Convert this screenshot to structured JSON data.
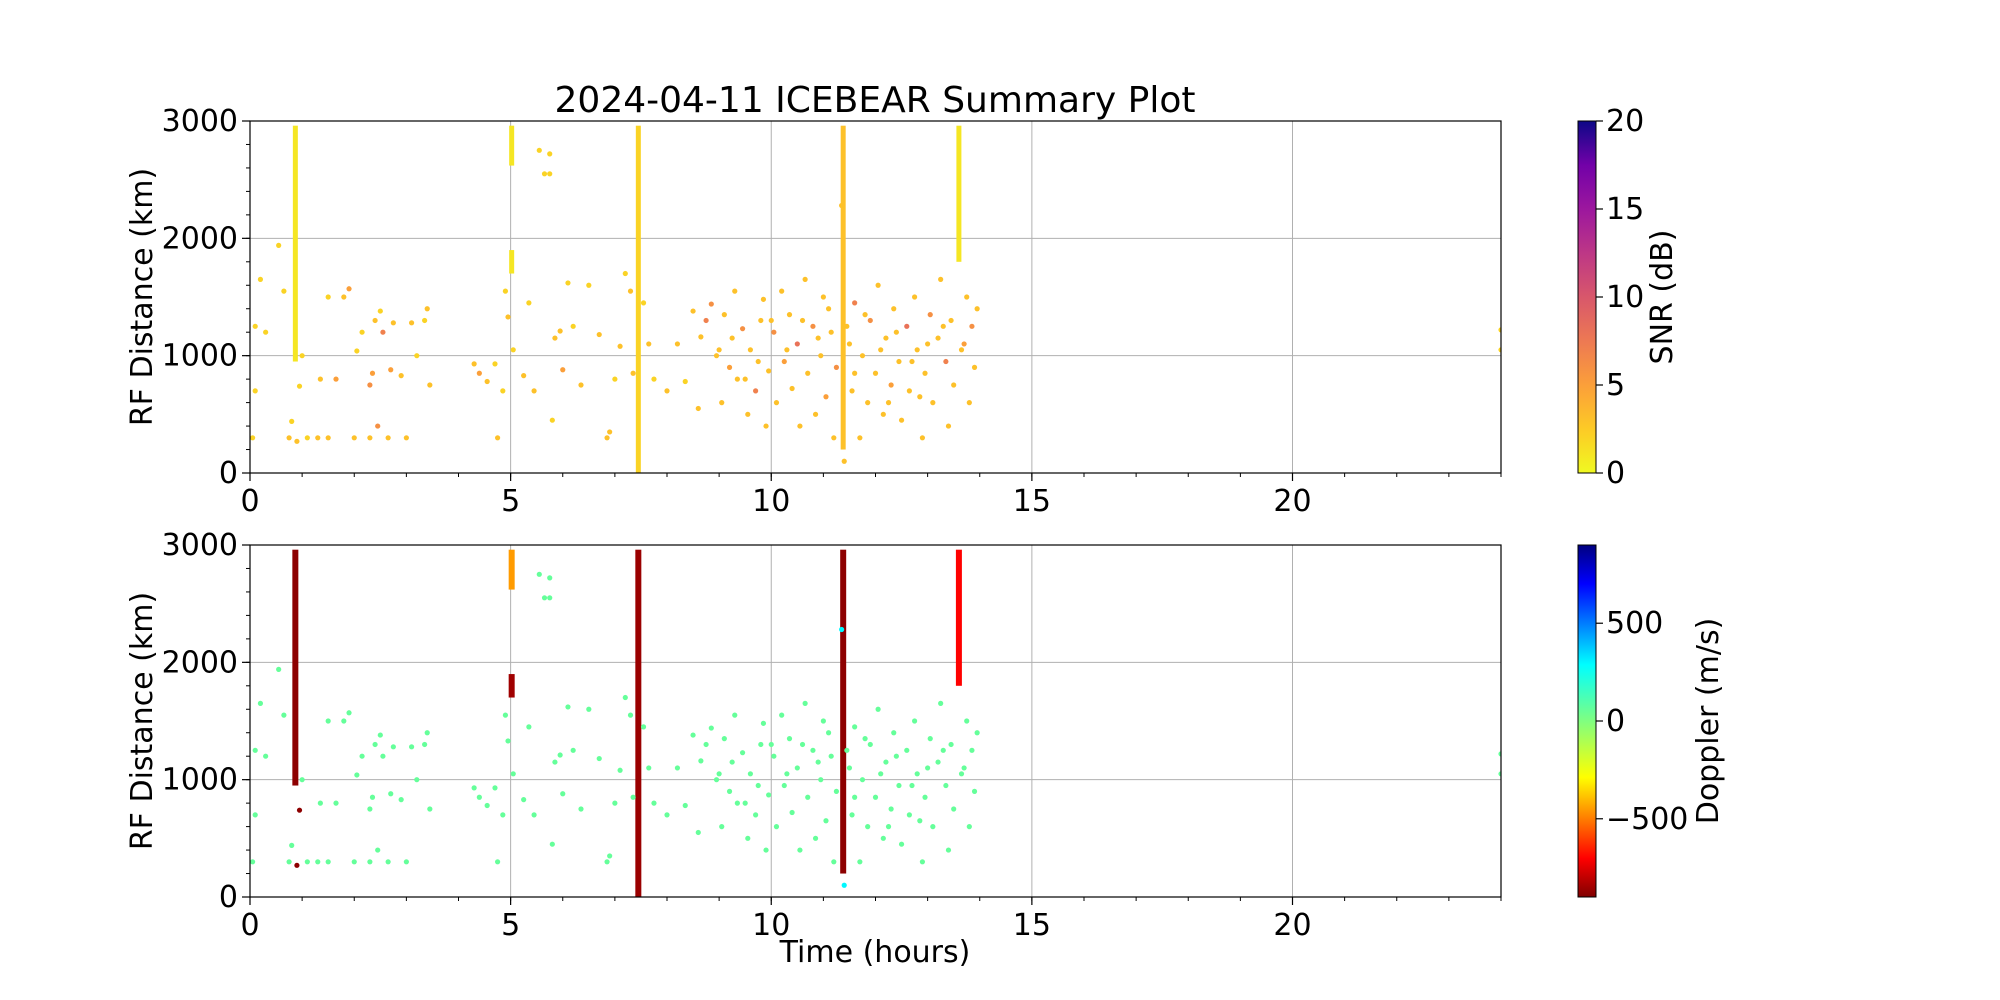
{
  "chart_data": {
    "title": "2024-04-11 ICEBEAR Summary Plot",
    "panels": [
      {
        "type": "scatter",
        "ylabel": "RF Distance (km)",
        "xlabel": "",
        "xlim": [
          0,
          24
        ],
        "ylim": [
          0,
          3000
        ],
        "xticks": [
          0,
          5,
          10,
          15,
          20
        ],
        "yticks": [
          0,
          1000,
          2000,
          3000
        ],
        "grid": true,
        "color_by": "snr",
        "colorbar": {
          "label": "SNR (dB)",
          "range": [
            0,
            20
          ],
          "ticks": [
            0,
            5,
            10,
            15,
            20
          ],
          "tick_labels": [
            "0",
            "5",
            "10",
            "15",
            "20"
          ],
          "colormap": "plasma_r"
        }
      },
      {
        "type": "scatter",
        "ylabel": "RF Distance (km)",
        "xlabel": "Time (hours)",
        "xlim": [
          0,
          24
        ],
        "ylim": [
          0,
          3000
        ],
        "xticks": [
          0,
          5,
          10,
          15,
          20
        ],
        "yticks": [
          0,
          1000,
          2000,
          3000
        ],
        "grid": true,
        "color_by": "doppler",
        "colorbar": {
          "label": "Doppler (m/s)",
          "range": [
            -900,
            900
          ],
          "ticks": [
            500,
            0,
            -500
          ],
          "tick_labels": [
            "500",
            "0",
            "−500"
          ],
          "colormap": "jet_r"
        }
      }
    ],
    "vertical_streaks": [
      {
        "x": 0.87,
        "y": [
          950,
          2960
        ],
        "snr": 1,
        "doppler": -880
      },
      {
        "x": 5.02,
        "y": [
          1700,
          1900
        ],
        "snr": 1,
        "doppler": -850
      },
      {
        "x": 5.02,
        "y": [
          2620,
          2960
        ],
        "snr": 1,
        "doppler": -450
      },
      {
        "x": 7.45,
        "y": [
          0,
          2960
        ],
        "snr": 2,
        "doppler": -860
      },
      {
        "x": 11.38,
        "y": [
          200,
          2960
        ],
        "snr": 3,
        "doppler": -880
      },
      {
        "x": 13.6,
        "y": [
          1800,
          2960
        ],
        "snr": 1,
        "doppler": -700
      }
    ],
    "points": [
      [
        0.1,
        700,
        2,
        60
      ],
      [
        0.1,
        1250,
        2,
        60
      ],
      [
        0.2,
        1650,
        2,
        60
      ],
      [
        0.3,
        1200,
        2,
        60
      ],
      [
        0.05,
        300,
        2,
        60
      ],
      [
        0.55,
        1940,
        2,
        60
      ],
      [
        0.65,
        1550,
        2,
        60
      ],
      [
        0.75,
        300,
        3,
        60
      ],
      [
        0.8,
        440,
        2,
        60
      ],
      [
        0.9,
        270,
        3,
        -880
      ],
      [
        0.95,
        740,
        2,
        -880
      ],
      [
        1.0,
        1000,
        2,
        60
      ],
      [
        1.1,
        300,
        2,
        60
      ],
      [
        1.3,
        300,
        3,
        60
      ],
      [
        1.35,
        800,
        3,
        60
      ],
      [
        1.5,
        1500,
        2,
        60
      ],
      [
        1.5,
        300,
        3,
        60
      ],
      [
        1.65,
        800,
        5,
        60
      ],
      [
        1.8,
        1500,
        3,
        60
      ],
      [
        1.9,
        1570,
        5,
        60
      ],
      [
        2.0,
        300,
        3,
        60
      ],
      [
        2.05,
        1040,
        2,
        60
      ],
      [
        2.15,
        1200,
        2,
        60
      ],
      [
        2.3,
        300,
        3,
        60
      ],
      [
        2.3,
        750,
        6,
        60
      ],
      [
        2.35,
        850,
        5,
        60
      ],
      [
        2.4,
        1300,
        3,
        60
      ],
      [
        2.45,
        400,
        6,
        60
      ],
      [
        2.5,
        1380,
        2,
        60
      ],
      [
        2.55,
        1200,
        7,
        60
      ],
      [
        2.65,
        300,
        3,
        60
      ],
      [
        2.7,
        880,
        5,
        60
      ],
      [
        2.75,
        1280,
        3,
        60
      ],
      [
        2.9,
        830,
        3,
        60
      ],
      [
        3.0,
        300,
        3,
        60
      ],
      [
        3.1,
        1280,
        3,
        60
      ],
      [
        3.2,
        1000,
        2,
        60
      ],
      [
        3.35,
        1300,
        2,
        60
      ],
      [
        3.4,
        1400,
        3,
        60
      ],
      [
        3.45,
        750,
        3,
        60
      ],
      [
        4.3,
        930,
        3,
        60
      ],
      [
        4.4,
        850,
        5,
        60
      ],
      [
        4.55,
        780,
        3,
        60
      ],
      [
        4.7,
        930,
        2,
        60
      ],
      [
        4.75,
        300,
        3,
        60
      ],
      [
        4.85,
        700,
        2,
        60
      ],
      [
        4.95,
        1330,
        3,
        60
      ],
      [
        4.9,
        1550,
        2,
        60
      ],
      [
        5.05,
        1050,
        2,
        60
      ],
      [
        5.25,
        830,
        3,
        60
      ],
      [
        5.35,
        1450,
        2,
        60
      ],
      [
        5.45,
        700,
        3,
        60
      ],
      [
        5.55,
        2750,
        2,
        60
      ],
      [
        5.65,
        2550,
        2,
        60
      ],
      [
        5.75,
        2720,
        2,
        60
      ],
      [
        5.75,
        2550,
        2,
        60
      ],
      [
        5.8,
        450,
        2,
        60
      ],
      [
        5.85,
        1150,
        3,
        60
      ],
      [
        5.95,
        1210,
        3,
        60
      ],
      [
        6.0,
        880,
        5,
        60
      ],
      [
        6.1,
        1620,
        2,
        60
      ],
      [
        6.2,
        1250,
        2,
        60
      ],
      [
        6.35,
        750,
        3,
        60
      ],
      [
        6.5,
        1600,
        2,
        60
      ],
      [
        6.7,
        1180,
        3,
        60
      ],
      [
        6.85,
        300,
        3,
        60
      ],
      [
        6.9,
        350,
        3,
        60
      ],
      [
        7.0,
        800,
        2,
        60
      ],
      [
        7.1,
        1080,
        3,
        60
      ],
      [
        7.2,
        1700,
        2,
        60
      ],
      [
        7.3,
        1550,
        3,
        60
      ],
      [
        7.35,
        850,
        3,
        60
      ],
      [
        7.55,
        1450,
        2,
        60
      ],
      [
        7.65,
        1100,
        3,
        60
      ],
      [
        7.75,
        800,
        2,
        60
      ],
      [
        8.0,
        700,
        3,
        60
      ],
      [
        8.2,
        1100,
        3,
        60
      ],
      [
        8.35,
        780,
        2,
        60
      ],
      [
        8.5,
        1380,
        3,
        60
      ],
      [
        8.6,
        550,
        3,
        60
      ],
      [
        8.65,
        1160,
        3,
        60
      ],
      [
        8.75,
        1300,
        7,
        60
      ],
      [
        8.85,
        1440,
        6,
        60
      ],
      [
        8.95,
        1000,
        3,
        60
      ],
      [
        9.05,
        600,
        3,
        60
      ],
      [
        9.1,
        1350,
        3,
        60
      ],
      [
        9.2,
        900,
        5,
        60
      ],
      [
        9.3,
        1550,
        3,
        60
      ],
      [
        9.35,
        800,
        3,
        60
      ],
      [
        9.45,
        1230,
        6,
        60
      ],
      [
        9.55,
        500,
        3,
        60
      ],
      [
        9.6,
        1050,
        3,
        60
      ],
      [
        9.7,
        700,
        7,
        60
      ],
      [
        9.8,
        1300,
        3,
        60
      ],
      [
        9.85,
        1480,
        3,
        60
      ],
      [
        9.9,
        400,
        3,
        60
      ],
      [
        9.95,
        870,
        3,
        60
      ],
      [
        10.05,
        1200,
        6,
        60
      ],
      [
        10.1,
        600,
        3,
        60
      ],
      [
        10.2,
        1550,
        3,
        60
      ],
      [
        10.25,
        950,
        5,
        60
      ],
      [
        10.35,
        1350,
        3,
        60
      ],
      [
        10.4,
        720,
        3,
        60
      ],
      [
        10.5,
        1100,
        8,
        60
      ],
      [
        10.55,
        400,
        3,
        60
      ],
      [
        10.65,
        1650,
        3,
        60
      ],
      [
        10.7,
        850,
        3,
        60
      ],
      [
        10.8,
        1250,
        6,
        60
      ],
      [
        10.85,
        500,
        3,
        60
      ],
      [
        10.95,
        1000,
        3,
        60
      ],
      [
        11.0,
        1500,
        3,
        60
      ],
      [
        11.05,
        650,
        5,
        60
      ],
      [
        11.15,
        1200,
        3,
        60
      ],
      [
        11.2,
        300,
        3,
        60
      ],
      [
        11.25,
        900,
        6,
        60
      ],
      [
        11.5,
        1100,
        3,
        60
      ],
      [
        11.55,
        700,
        3,
        60
      ],
      [
        11.6,
        1450,
        7,
        60
      ],
      [
        11.7,
        300,
        3,
        60
      ],
      [
        11.75,
        1000,
        3,
        60
      ],
      [
        11.85,
        600,
        3,
        60
      ],
      [
        11.9,
        1300,
        6,
        60
      ],
      [
        12.0,
        850,
        3,
        60
      ],
      [
        12.05,
        1600,
        3,
        60
      ],
      [
        12.15,
        500,
        3,
        60
      ],
      [
        12.2,
        1150,
        3,
        60
      ],
      [
        12.3,
        750,
        5,
        60
      ],
      [
        12.35,
        1400,
        3,
        60
      ],
      [
        12.45,
        950,
        3,
        60
      ],
      [
        12.5,
        450,
        3,
        60
      ],
      [
        12.6,
        1250,
        8,
        60
      ],
      [
        12.65,
        700,
        3,
        60
      ],
      [
        12.75,
        1500,
        3,
        60
      ],
      [
        12.8,
        1050,
        3,
        60
      ],
      [
        12.9,
        300,
        3,
        60
      ],
      [
        12.95,
        850,
        3,
        60
      ],
      [
        13.05,
        1350,
        6,
        60
      ],
      [
        13.1,
        600,
        3,
        60
      ],
      [
        13.2,
        1150,
        3,
        60
      ],
      [
        13.25,
        1650,
        3,
        60
      ],
      [
        13.35,
        950,
        7,
        60
      ],
      [
        13.4,
        400,
        3,
        60
      ],
      [
        13.45,
        1300,
        3,
        60
      ],
      [
        13.5,
        750,
        3,
        60
      ],
      [
        13.7,
        1100,
        5,
        60
      ],
      [
        13.75,
        1500,
        3,
        60
      ],
      [
        13.8,
        600,
        3,
        60
      ],
      [
        13.85,
        1250,
        6,
        60
      ],
      [
        13.9,
        900,
        3,
        60
      ],
      [
        13.95,
        1400,
        3,
        60
      ],
      [
        9.0,
        1050,
        3,
        60
      ],
      [
        9.25,
        1150,
        3,
        60
      ],
      [
        9.5,
        800,
        3,
        60
      ],
      [
        9.75,
        950,
        3,
        60
      ],
      [
        10.0,
        1300,
        3,
        60
      ],
      [
        10.3,
        1050,
        3,
        60
      ],
      [
        10.6,
        1300,
        3,
        60
      ],
      [
        10.9,
        1150,
        3,
        60
      ],
      [
        11.1,
        1400,
        3,
        60
      ],
      [
        11.45,
        1250,
        3,
        60
      ],
      [
        11.8,
        1350,
        3,
        60
      ],
      [
        12.1,
        1050,
        3,
        60
      ],
      [
        12.4,
        1200,
        3,
        60
      ],
      [
        12.7,
        950,
        3,
        60
      ],
      [
        13.0,
        1100,
        3,
        60
      ],
      [
        13.3,
        1250,
        3,
        60
      ],
      [
        13.65,
        1050,
        3,
        60
      ],
      [
        11.6,
        850,
        3,
        60
      ],
      [
        12.25,
        600,
        3,
        60
      ],
      [
        12.85,
        650,
        3,
        60
      ],
      [
        11.35,
        2280,
        3,
        300
      ],
      [
        11.4,
        100,
        3,
        300
      ],
      [
        24.0,
        1050,
        2,
        60
      ],
      [
        24.0,
        1220,
        2,
        60
      ]
    ]
  }
}
